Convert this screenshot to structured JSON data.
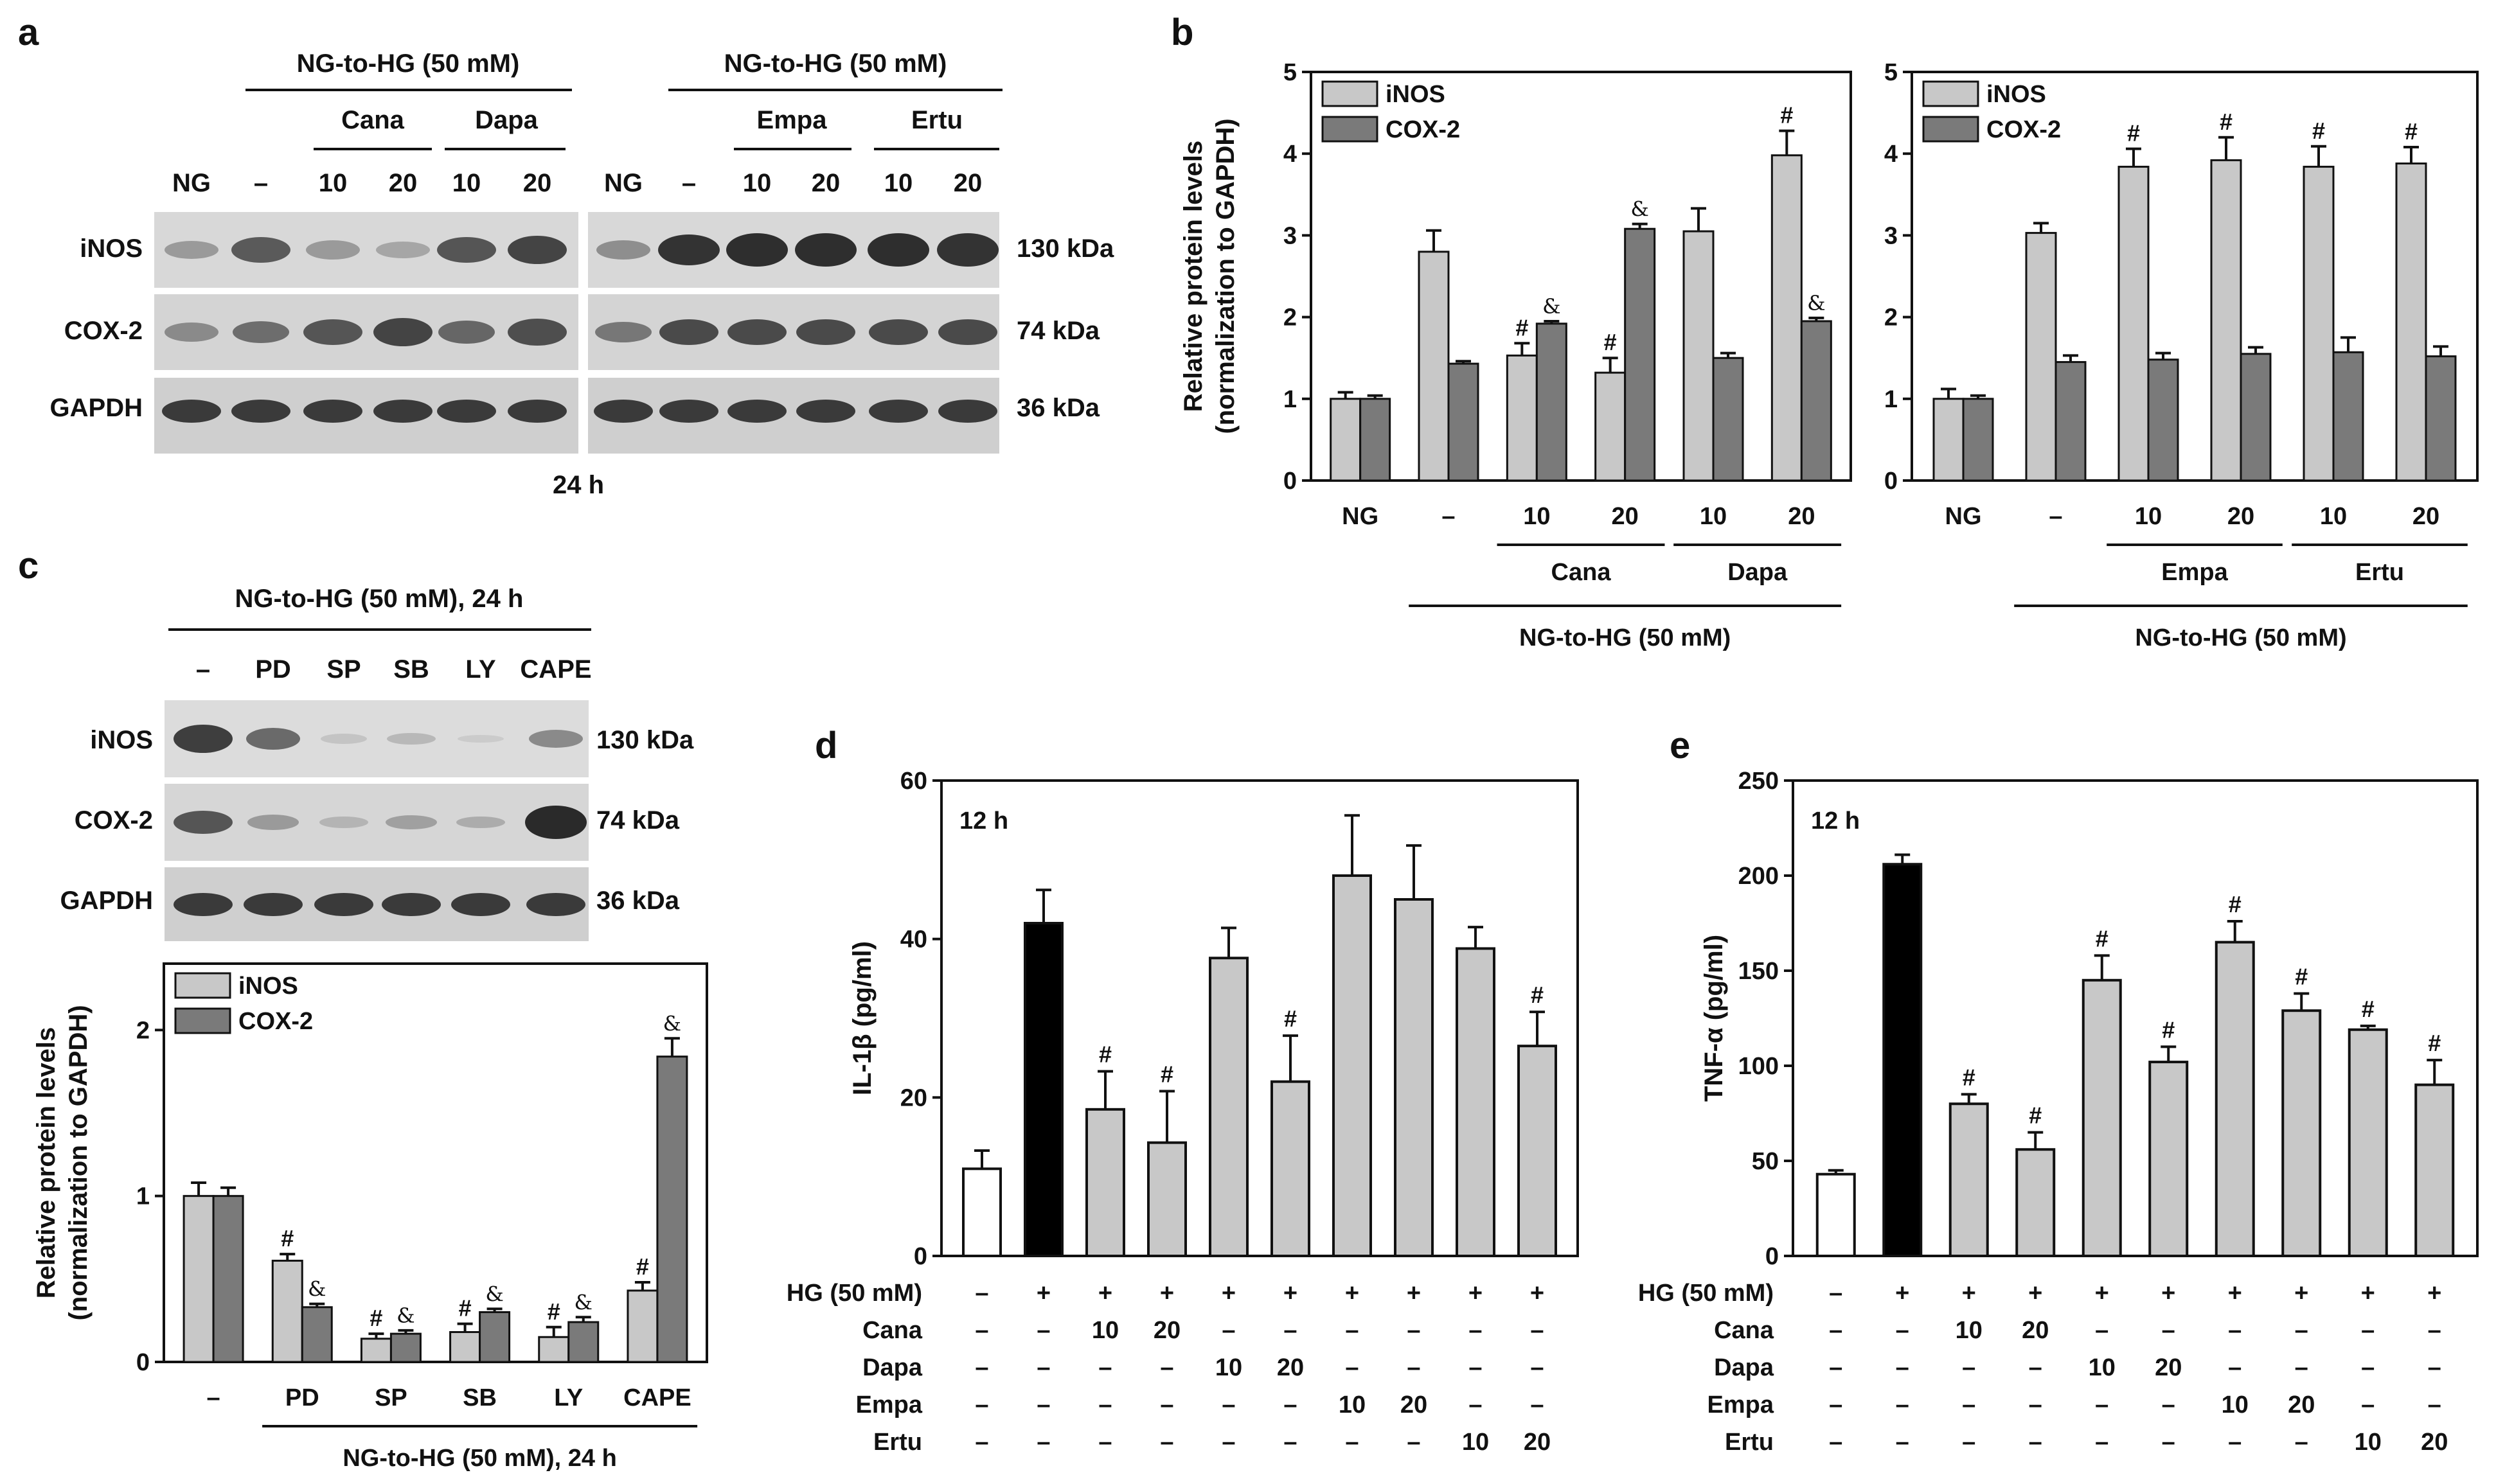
{
  "panels": {
    "a": "a",
    "b": "b",
    "c": "c",
    "d": "d",
    "e": "e"
  },
  "colors": {
    "ng": "#ffffff",
    "hg": "#000000",
    "treat": "#c8c8c8",
    "inos": "#c8c8c8",
    "cox2": "#7a7a7a"
  },
  "blot_a": {
    "header_left": "NG-to-HG (50 mM)",
    "header_right": "NG-to-HG (50 mM)",
    "groups_left": [
      "Cana",
      "Dapa"
    ],
    "groups_right": [
      "Empa",
      "Ertu"
    ],
    "lanes": [
      "NG",
      "–",
      "10",
      "20",
      "10",
      "20"
    ],
    "rows": [
      "iNOS",
      "COX-2",
      "GAPDH"
    ],
    "kda": [
      "130 kDa",
      "74 kDa",
      "36 kDa"
    ],
    "time": "24 h"
  },
  "blot_c": {
    "header": "NG-to-HG (50 mM), 24 h",
    "lanes": [
      "–",
      "PD",
      "SP",
      "SB",
      "LY",
      "CAPE"
    ],
    "rows": [
      "iNOS",
      "COX-2",
      "GAPDH"
    ],
    "kda": [
      "130 kDa",
      "74 kDa",
      "36 kDa"
    ]
  },
  "chart_data": [
    {
      "id": "b_left",
      "type": "bar",
      "ylabel": "Relative protein levels (normalization to GAPDH)",
      "ylabel_lines": [
        "Relative protein levels",
        "(normalization to GAPDH)"
      ],
      "ylim": [
        0,
        5
      ],
      "yticks": [
        "0",
        "1",
        "2",
        "3",
        "4",
        "5"
      ],
      "categories": [
        "NG",
        "–",
        "10",
        "20",
        "10",
        "20"
      ],
      "groups": [
        {
          "label": "Cana",
          "from": 2,
          "to": 3
        },
        {
          "label": "Dapa",
          "from": 4,
          "to": 5
        }
      ],
      "xlabel": "NG-to-HG (50 mM)",
      "series": [
        {
          "name": "iNOS",
          "values": [
            1.0,
            2.8,
            1.53,
            1.32,
            3.05,
            3.98
          ],
          "errors": [
            0.08,
            0.26,
            0.15,
            0.18,
            0.28,
            0.3
          ],
          "marks": [
            "",
            "",
            "#",
            "#",
            "",
            "#"
          ]
        },
        {
          "name": "COX-2",
          "values": [
            1.0,
            1.43,
            1.92,
            3.08,
            1.5,
            1.95
          ],
          "errors": [
            0.04,
            0.03,
            0.03,
            0.06,
            0.06,
            0.04
          ],
          "marks": [
            "",
            "",
            "&",
            "&",
            "",
            "&"
          ]
        }
      ]
    },
    {
      "id": "b_right",
      "type": "bar",
      "ylim": [
        0,
        5
      ],
      "yticks": [
        "0",
        "1",
        "2",
        "3",
        "4",
        "5"
      ],
      "categories": [
        "NG",
        "–",
        "10",
        "20",
        "10",
        "20"
      ],
      "groups": [
        {
          "label": "Empa",
          "from": 2,
          "to": 3
        },
        {
          "label": "Ertu",
          "from": 4,
          "to": 5
        }
      ],
      "xlabel": "NG-to-HG (50 mM)",
      "series": [
        {
          "name": "iNOS",
          "values": [
            1.0,
            3.03,
            3.84,
            3.92,
            3.84,
            3.88
          ],
          "errors": [
            0.12,
            0.12,
            0.22,
            0.28,
            0.25,
            0.2
          ],
          "marks": [
            "",
            "",
            "#",
            "#",
            "#",
            "#"
          ]
        },
        {
          "name": "COX-2",
          "values": [
            1.0,
            1.45,
            1.48,
            1.55,
            1.57,
            1.52
          ],
          "errors": [
            0.04,
            0.08,
            0.08,
            0.08,
            0.18,
            0.12
          ],
          "marks": [
            "",
            "",
            "",
            "",
            "",
            ""
          ]
        }
      ]
    },
    {
      "id": "c_chart",
      "type": "bar",
      "ylabel": "Relative protein levels (normalization to GAPDH)",
      "ylabel_lines": [
        "Relative protein levels",
        "(normalization to GAPDH)"
      ],
      "ylim": [
        0,
        2.4
      ],
      "yticks": [
        "0",
        "1",
        "2"
      ],
      "categories": [
        "–",
        "PD",
        "SP",
        "SB",
        "LY",
        "CAPE"
      ],
      "xlabel": "NG-to-HG (50 mM), 24 h",
      "series": [
        {
          "name": "iNOS",
          "values": [
            1.0,
            0.61,
            0.14,
            0.18,
            0.15,
            0.43
          ],
          "errors": [
            0.08,
            0.04,
            0.03,
            0.05,
            0.06,
            0.05
          ],
          "marks": [
            "",
            "#",
            "#",
            "#",
            "#",
            "#"
          ]
        },
        {
          "name": "COX-2",
          "values": [
            1.0,
            0.33,
            0.17,
            0.3,
            0.24,
            1.84
          ],
          "errors": [
            0.05,
            0.02,
            0.02,
            0.02,
            0.03,
            0.11
          ],
          "marks": [
            "",
            "&",
            "&",
            "&",
            "&",
            "&"
          ]
        }
      ]
    },
    {
      "id": "d_chart",
      "type": "bar",
      "annotation": "12 h",
      "ylabel": "IL-1β (pg/ml)",
      "ylim": [
        0,
        60
      ],
      "yticks": [
        "0",
        "20",
        "40",
        "60"
      ],
      "values": [
        11,
        42,
        18.5,
        14.3,
        37.6,
        22,
        48,
        45,
        38.8,
        26.5
      ],
      "errors": [
        2.3,
        4.2,
        4.8,
        6.5,
        3.8,
        5.8,
        7.6,
        6.8,
        2.7,
        4.3
      ],
      "fills": [
        "ng",
        "hg",
        "treat",
        "treat",
        "treat",
        "treat",
        "treat",
        "treat",
        "treat",
        "treat"
      ],
      "marks": [
        "",
        "",
        "#",
        "#",
        "",
        "#",
        "",
        "",
        "",
        "#"
      ],
      "table_rows": [
        {
          "label": "HG (50 mM)",
          "cells": [
            "–",
            "+",
            "+",
            "+",
            "+",
            "+",
            "+",
            "+",
            "+",
            "+"
          ]
        },
        {
          "label": "Cana",
          "cells": [
            "–",
            "–",
            "10",
            "20",
            "–",
            "–",
            "–",
            "–",
            "–",
            "–"
          ]
        },
        {
          "label": "Dapa",
          "cells": [
            "–",
            "–",
            "–",
            "–",
            "10",
            "20",
            "–",
            "–",
            "–",
            "–"
          ]
        },
        {
          "label": "Empa",
          "cells": [
            "–",
            "–",
            "–",
            "–",
            "–",
            "–",
            "10",
            "20",
            "–",
            "–"
          ]
        },
        {
          "label": "Ertu",
          "cells": [
            "–",
            "–",
            "–",
            "–",
            "–",
            "–",
            "–",
            "–",
            "10",
            "20"
          ]
        }
      ]
    },
    {
      "id": "e_chart",
      "type": "bar",
      "annotation": "12 h",
      "ylabel": "TNF-α (pg/ml)",
      "ylim": [
        0,
        250
      ],
      "yticks": [
        "0",
        "50",
        "100",
        "150",
        "200",
        "250"
      ],
      "values": [
        43,
        206,
        80,
        56,
        145,
        102,
        165,
        129,
        119,
        90
      ],
      "errors": [
        2,
        5,
        5,
        9,
        13,
        8,
        11,
        9,
        2,
        13
      ],
      "fills": [
        "ng",
        "hg",
        "treat",
        "treat",
        "treat",
        "treat",
        "treat",
        "treat",
        "treat",
        "treat"
      ],
      "marks": [
        "",
        "",
        "#",
        "#",
        "#",
        "#",
        "#",
        "#",
        "#",
        "#"
      ],
      "table_rows": [
        {
          "label": "HG (50 mM)",
          "cells": [
            "–",
            "+",
            "+",
            "+",
            "+",
            "+",
            "+",
            "+",
            "+",
            "+"
          ]
        },
        {
          "label": "Cana",
          "cells": [
            "–",
            "–",
            "10",
            "20",
            "–",
            "–",
            "–",
            "–",
            "–",
            "–"
          ]
        },
        {
          "label": "Dapa",
          "cells": [
            "–",
            "–",
            "–",
            "–",
            "10",
            "20",
            "–",
            "–",
            "–",
            "–"
          ]
        },
        {
          "label": "Empa",
          "cells": [
            "–",
            "–",
            "–",
            "–",
            "–",
            "–",
            "10",
            "20",
            "–",
            "–"
          ]
        },
        {
          "label": "Ertu",
          "cells": [
            "–",
            "–",
            "–",
            "–",
            "–",
            "–",
            "–",
            "–",
            "10",
            "20"
          ]
        }
      ]
    }
  ]
}
